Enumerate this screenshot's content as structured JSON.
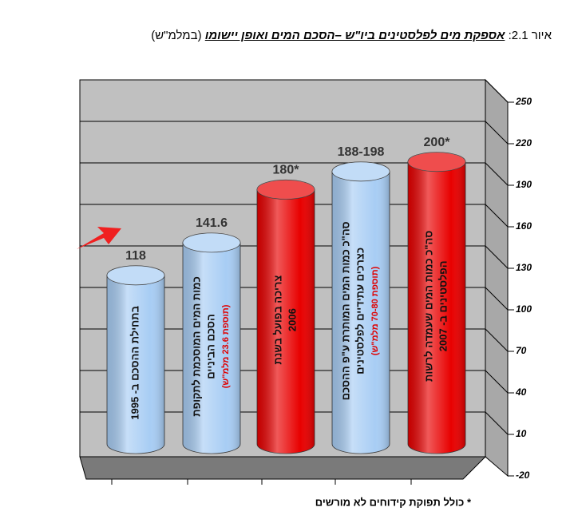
{
  "chart_data": {
    "type": "cylinder-bar",
    "title_label": "איור 2.1:",
    "title": "אספקת מים לפלסטינים ביו\"ש –הסכם המים ואופן יישומו",
    "title_unit": "(במלמ\"ש)",
    "categories": [
      [
        "בתחילת ההסכם ב- 1995"
      ],
      [
        "כמות המים המוסכמת לתקופת",
        "הסכם הביניים"
      ],
      [
        "צריכה בפועל בשנת",
        "2006"
      ],
      [
        "סה\"כ כמות המים המותרת ע\"פ ההסכם",
        "כצרכים עתידיים לפלסטינים"
      ],
      [
        "סה\"כ כמות המים שעמדה לרשות",
        "הפלסטינים ב- 2007"
      ]
    ],
    "notes": [
      null,
      "(תוספת 23.6 מלמ\"ש)",
      null,
      "(תוספת 70-80 מלמ\"ש)",
      null
    ],
    "values": [
      118,
      141.6,
      180,
      193,
      200
    ],
    "value_labels": [
      "118",
      "141.6",
      "180*",
      "188-198",
      "200*"
    ],
    "colors": [
      "#a8cdf4",
      "#a8cdf4",
      "#e80000",
      "#a8cdf4",
      "#e80000"
    ],
    "ylim": [
      -20,
      250
    ],
    "yticks": [
      -20,
      10,
      40,
      70,
      100,
      130,
      160,
      190,
      220,
      250
    ],
    "grid": true,
    "footnote": "* כולל תפוקת קידוחים לא מורשים"
  }
}
